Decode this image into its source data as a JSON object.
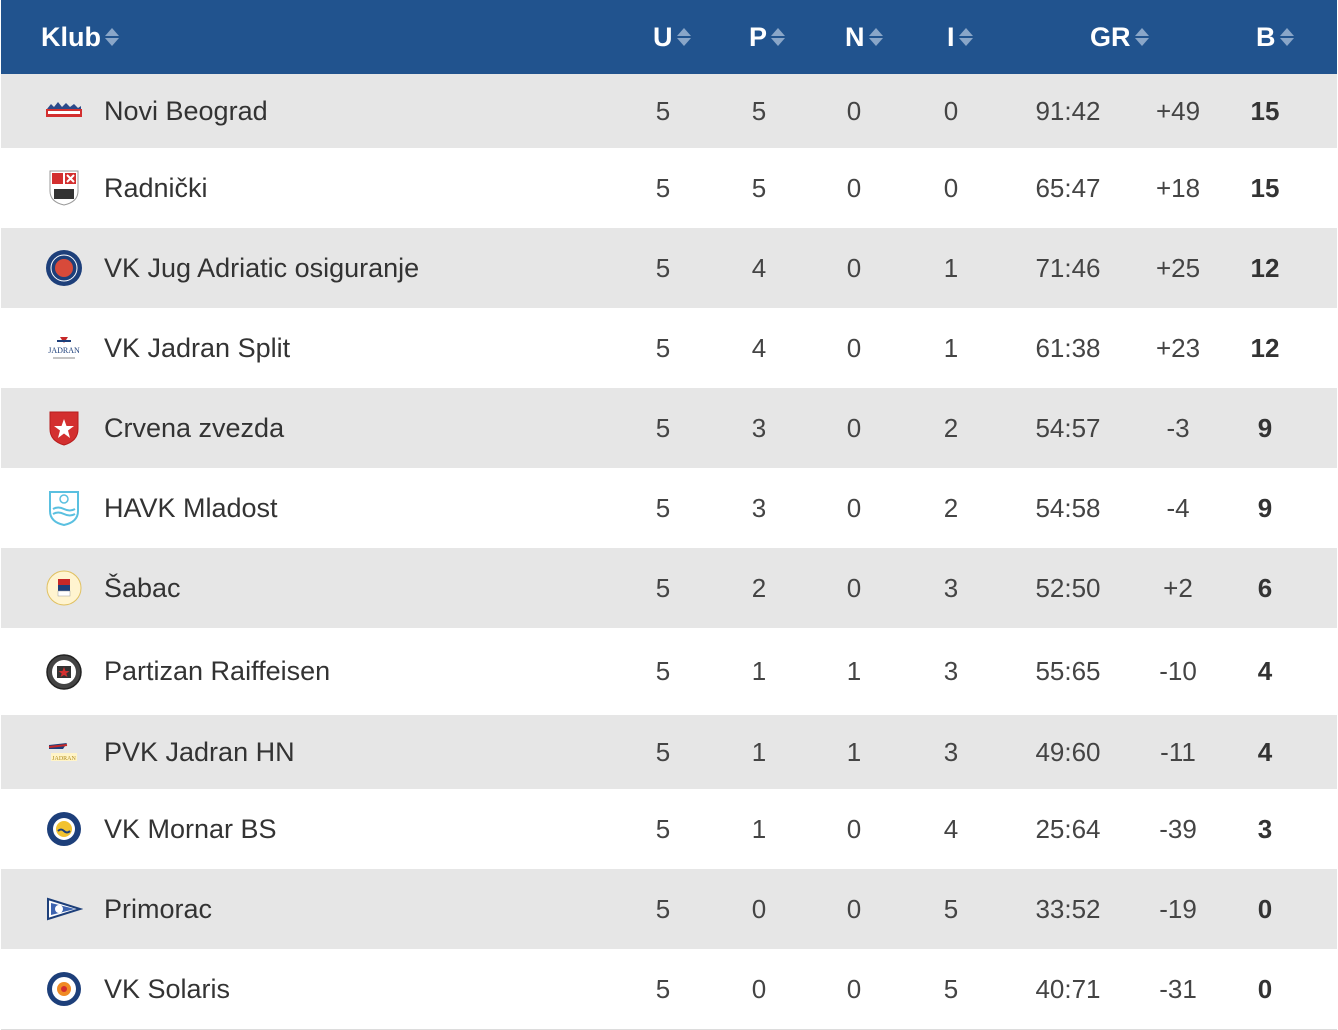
{
  "header": {
    "club": "Klub",
    "played": "U",
    "won": "P",
    "drawn": "N",
    "lost": "I",
    "goals": "GR",
    "points": "B"
  },
  "colors": {
    "header_bg": "#21538e",
    "row_alt": "#e6e6e6",
    "row_plain": "#ffffff"
  },
  "rows": [
    {
      "club": "Novi Beograd",
      "logo": "novi-beograd-logo",
      "u": "5",
      "p": "5",
      "n": "0",
      "i": "0",
      "gr": "91:42",
      "diff": "+49",
      "b": "15"
    },
    {
      "club": "Radnički",
      "logo": "radnicki-logo",
      "u": "5",
      "p": "5",
      "n": "0",
      "i": "0",
      "gr": "65:47",
      "diff": "+18",
      "b": "15"
    },
    {
      "club": "VK Jug Adriatic osiguranje",
      "logo": "jug-logo",
      "u": "5",
      "p": "4",
      "n": "0",
      "i": "1",
      "gr": "71:46",
      "diff": "+25",
      "b": "12"
    },
    {
      "club": "VK Jadran Split",
      "logo": "jadran-split-logo",
      "u": "5",
      "p": "4",
      "n": "0",
      "i": "1",
      "gr": "61:38",
      "diff": "+23",
      "b": "12"
    },
    {
      "club": "Crvena zvezda",
      "logo": "crvena-zvezda-logo",
      "u": "5",
      "p": "3",
      "n": "0",
      "i": "2",
      "gr": "54:57",
      "diff": "-3",
      "b": "9"
    },
    {
      "club": "HAVK Mladost",
      "logo": "mladost-logo",
      "u": "5",
      "p": "3",
      "n": "0",
      "i": "2",
      "gr": "54:58",
      "diff": "-4",
      "b": "9"
    },
    {
      "club": "Šabac",
      "logo": "sabac-logo",
      "u": "5",
      "p": "2",
      "n": "0",
      "i": "3",
      "gr": "52:50",
      "diff": "+2",
      "b": "6"
    },
    {
      "club": "Partizan Raiffeisen",
      "logo": "partizan-logo",
      "u": "5",
      "p": "1",
      "n": "1",
      "i": "3",
      "gr": "55:65",
      "diff": "-10",
      "b": "4"
    },
    {
      "club": "PVK Jadran HN",
      "logo": "jadran-hn-logo",
      "u": "5",
      "p": "1",
      "n": "1",
      "i": "3",
      "gr": "49:60",
      "diff": "-11",
      "b": "4"
    },
    {
      "club": "VK Mornar BS",
      "logo": "mornar-logo",
      "u": "5",
      "p": "1",
      "n": "0",
      "i": "4",
      "gr": "25:64",
      "diff": "-39",
      "b": "3"
    },
    {
      "club": "Primorac",
      "logo": "primorac-logo",
      "u": "5",
      "p": "0",
      "n": "0",
      "i": "5",
      "gr": "33:52",
      "diff": "-19",
      "b": "0"
    },
    {
      "club": "VK Solaris",
      "logo": "solaris-logo",
      "u": "5",
      "p": "0",
      "n": "0",
      "i": "5",
      "gr": "40:71",
      "diff": "-31",
      "b": "0"
    }
  ]
}
